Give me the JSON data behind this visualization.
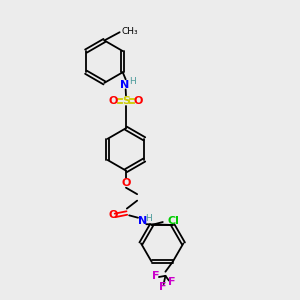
{
  "bg_color": "#ececec",
  "atom_colors": {
    "C": "#000000",
    "N": "#0000ff",
    "O": "#ff0000",
    "S": "#cccc00",
    "F": "#cc00cc",
    "Cl": "#00cc00",
    "H": "#4a9a9a"
  },
  "lw": 1.3,
  "fs": 8.0,
  "fs_small": 6.5
}
